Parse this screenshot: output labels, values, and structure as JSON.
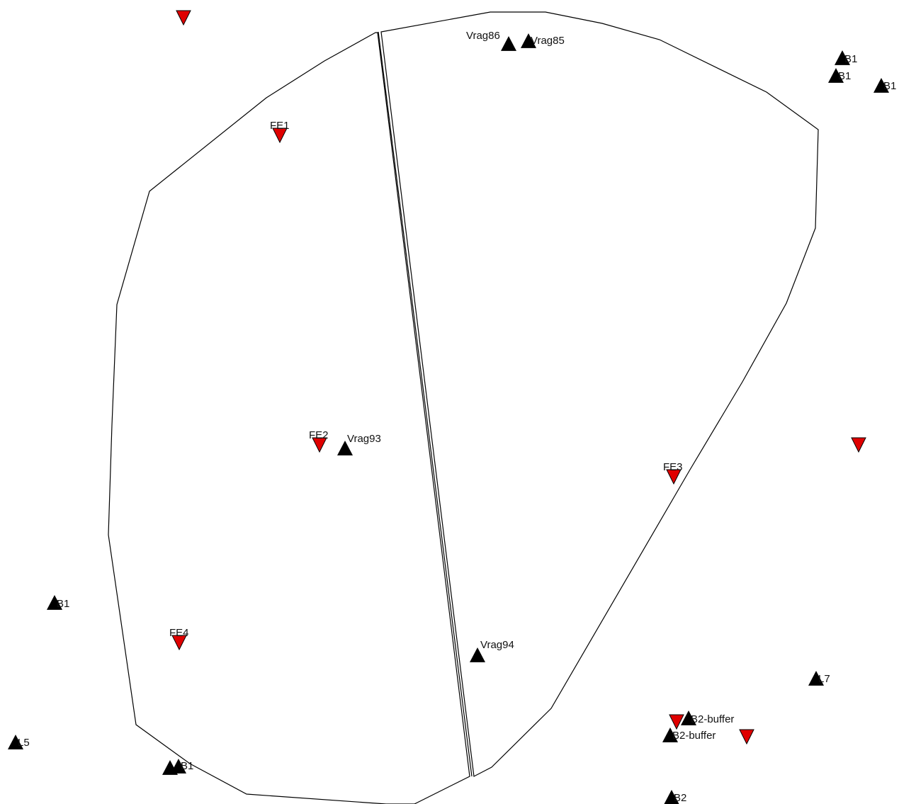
{
  "colors": {
    "black_marker": "#000000",
    "red_marker": "#e00000",
    "outline": "#000000"
  },
  "map": {
    "red_points": [
      {
        "id": "r0",
        "label": ""
      },
      {
        "id": "r1",
        "label": "FE1"
      },
      {
        "id": "r2",
        "label": "FE2"
      },
      {
        "id": "r3",
        "label": "FE3"
      },
      {
        "id": "r4",
        "label": ""
      },
      {
        "id": "r5",
        "label": "FE4"
      },
      {
        "id": "r6",
        "label": ""
      },
      {
        "id": "r7",
        "label": ""
      }
    ],
    "black_points": [
      {
        "id": "b0",
        "label": "Vrag86"
      },
      {
        "id": "b1",
        "label": "Vrag85"
      },
      {
        "id": "b2",
        "label": "B1"
      },
      {
        "id": "b3",
        "label": "B1"
      },
      {
        "id": "b4",
        "label": "B1"
      },
      {
        "id": "b5",
        "label": "Vrag93"
      },
      {
        "id": "b6",
        "label": "B1"
      },
      {
        "id": "b7",
        "label": "Vrag94"
      },
      {
        "id": "b8",
        "label": "L7"
      },
      {
        "id": "b9",
        "label": "B2-buffer"
      },
      {
        "id": "b10",
        "label": "B2-buffer"
      },
      {
        "id": "b11",
        "label": "L5"
      },
      {
        "id": "b12",
        "label": ""
      },
      {
        "id": "b13",
        "label": "B1"
      },
      {
        "id": "b14",
        "label": "B2"
      }
    ]
  }
}
